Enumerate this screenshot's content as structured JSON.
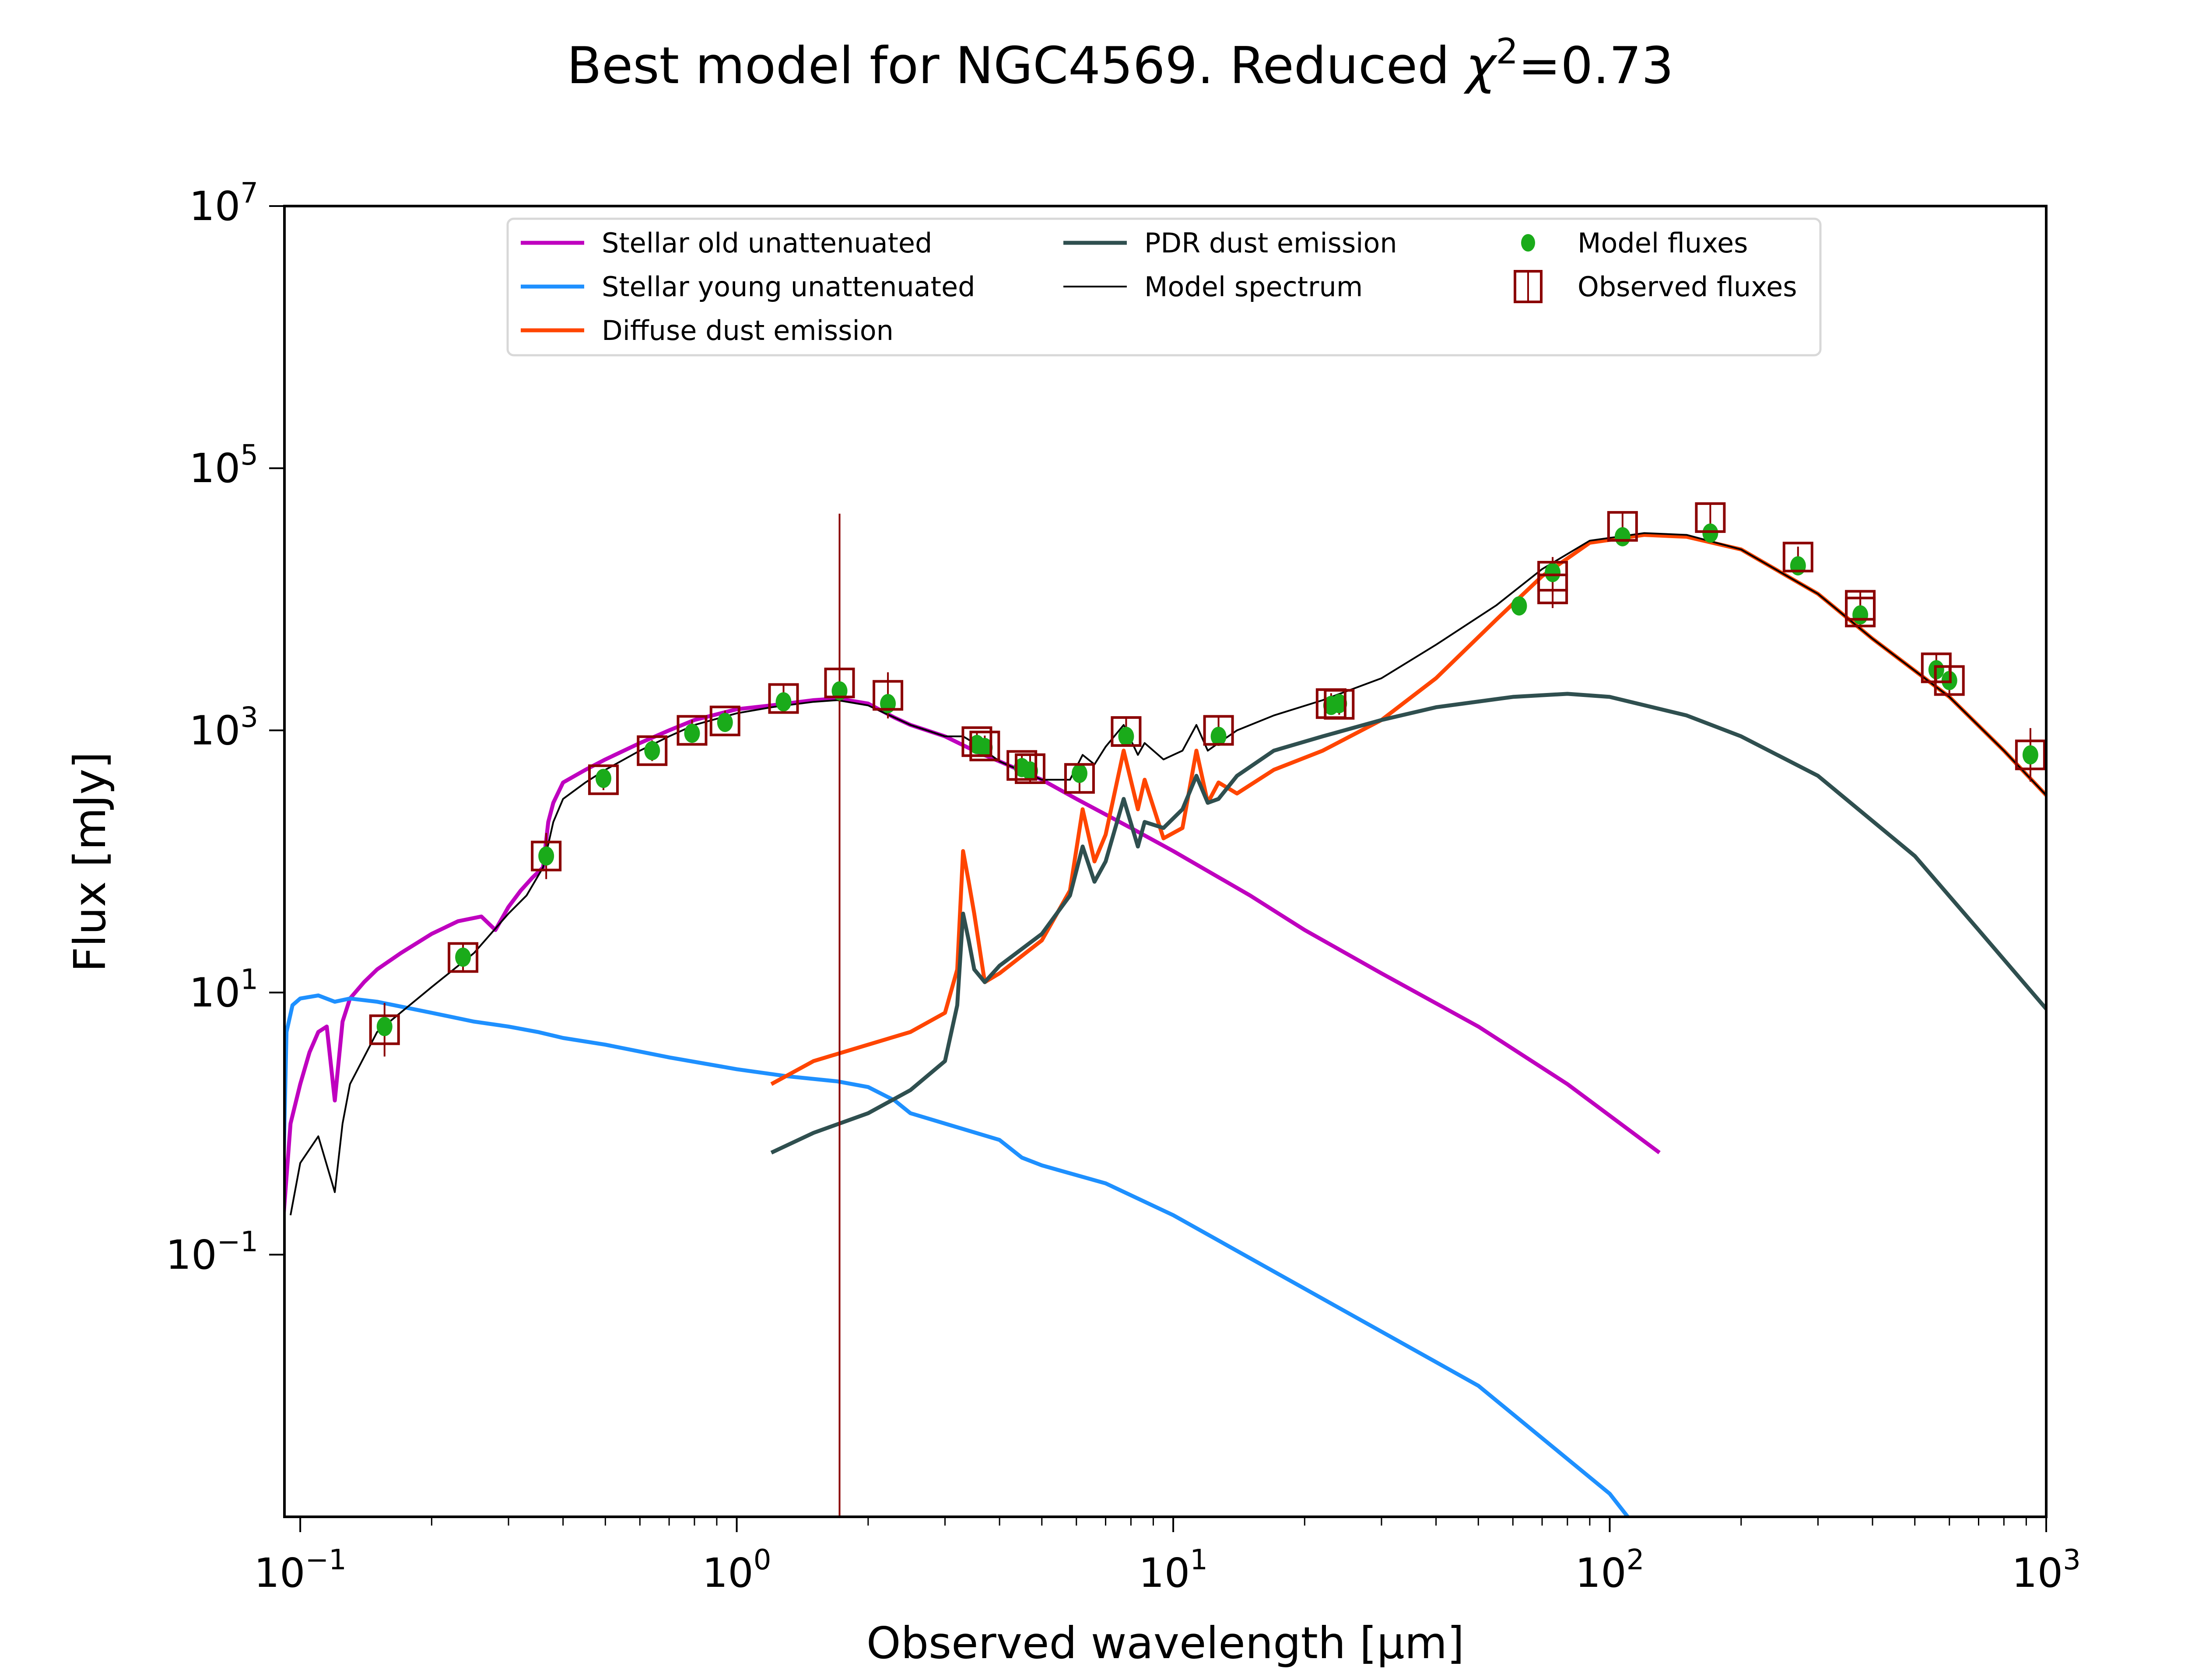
{
  "chart_data": {
    "type": "line",
    "title": "Best model for NGC4569. Reduced χ²=0.73",
    "title_parts": {
      "prefix": "Best model for NGC4569. Reduced ",
      "symbol": "χ",
      "sup": "2",
      "suffix": "=0.73"
    },
    "xlabel": "Observed wavelength [μm]",
    "ylabel": "Flux [mJy]",
    "xscale": "log",
    "yscale": "log",
    "xlim": [
      0.092,
      1000
    ],
    "ylim": [
      0.001,
      10000000
    ],
    "x_ticks": [
      {
        "base": "10",
        "exp": "−1",
        "value": 0.1
      },
      {
        "base": "10",
        "exp": "0",
        "value": 1
      },
      {
        "base": "10",
        "exp": "1",
        "value": 10
      },
      {
        "base": "10",
        "exp": "2",
        "value": 100
      },
      {
        "base": "10",
        "exp": "3",
        "value": 1000
      }
    ],
    "y_ticks": [
      {
        "base": "10",
        "exp": "7",
        "value": 10000000
      },
      {
        "base": "10",
        "exp": "5",
        "value": 100000
      },
      {
        "base": "10",
        "exp": "3",
        "value": 1000
      },
      {
        "base": "10",
        "exp": "1",
        "value": 10
      },
      {
        "base": "10",
        "exp": "−1",
        "value": 0.1
      }
    ],
    "grid": false,
    "legend_position": "upper-center",
    "legend": [
      {
        "label": "Stellar old unattenuated",
        "color": "#bf00bf",
        "kind": "line"
      },
      {
        "label": "Stellar young unattenuated",
        "color": "#1e90ff",
        "kind": "line"
      },
      {
        "label": "Diffuse dust emission",
        "color": "#ff4500",
        "kind": "line"
      },
      {
        "label": "PDR dust emission",
        "color": "#2f4f4f",
        "kind": "line"
      },
      {
        "label": "Model spectrum",
        "color": "#000000",
        "kind": "thin-line"
      },
      {
        "label": "Model fluxes",
        "color": "#1aab1a",
        "kind": "dot"
      },
      {
        "label": "Observed fluxes",
        "color": "#8b0000",
        "kind": "square"
      }
    ],
    "series": [
      {
        "name": "Stellar old unattenuated",
        "color": "#bf00bf",
        "x": [
          0.091,
          0.095,
          0.1,
          0.105,
          0.11,
          0.115,
          0.12,
          0.125,
          0.13,
          0.14,
          0.15,
          0.17,
          0.2,
          0.23,
          0.26,
          0.28,
          0.3,
          0.32,
          0.34,
          0.36,
          0.37,
          0.38,
          0.4,
          0.45,
          0.5,
          0.6,
          0.7,
          0.8,
          1.0,
          1.2,
          1.5,
          1.7,
          2.0,
          2.3,
          2.5,
          3.0,
          3.5,
          4.0,
          5.0,
          6.0,
          8.0,
          10,
          15,
          20,
          30,
          50,
          80,
          130
        ],
        "y": [
          0.15,
          1.0,
          2.0,
          3.5,
          5.0,
          5.5,
          1.5,
          6.0,
          9.0,
          12,
          15,
          20,
          28,
          35,
          38,
          30,
          45,
          60,
          75,
          90,
          200,
          280,
          400,
          500,
          600,
          800,
          1000,
          1200,
          1450,
          1550,
          1700,
          1750,
          1600,
          1250,
          1100,
          900,
          700,
          580,
          420,
          300,
          180,
          120,
          55,
          30,
          14,
          5.5,
          2.0,
          0.6
        ]
      },
      {
        "name": "Stellar young unattenuated",
        "color": "#1e90ff",
        "x": [
          0.091,
          0.093,
          0.096,
          0.1,
          0.11,
          0.12,
          0.13,
          0.15,
          0.2,
          0.25,
          0.3,
          0.35,
          0.4,
          0.5,
          0.7,
          1.0,
          1.3,
          1.7,
          2.0,
          2.3,
          2.5,
          3.0,
          4.0,
          4.5,
          5.0,
          7.0,
          10,
          20,
          50,
          100,
          110
        ],
        "y": [
          0.2,
          5.0,
          8.0,
          9.0,
          9.5,
          8.5,
          9.0,
          8.5,
          7.0,
          6.0,
          5.5,
          5.0,
          4.5,
          4.0,
          3.2,
          2.6,
          2.3,
          2.1,
          1.9,
          1.5,
          1.2,
          1.0,
          0.75,
          0.55,
          0.48,
          0.35,
          0.2,
          0.055,
          0.01,
          0.0015,
          0.001
        ]
      },
      {
        "name": "Diffuse dust emission",
        "color": "#ff4500",
        "x": [
          1.2,
          1.5,
          2.0,
          2.5,
          3.0,
          3.2,
          3.3,
          3.4,
          3.5,
          3.7,
          4.0,
          5.0,
          5.8,
          6.2,
          6.6,
          7.0,
          7.7,
          8.3,
          8.6,
          9.5,
          10.5,
          11.3,
          12.0,
          12.7,
          14,
          17,
          22,
          30,
          40,
          55,
          70,
          90,
          120,
          150,
          200,
          300,
          400,
          600,
          800,
          1000
        ],
        "y": [
          2.0,
          3.0,
          4.0,
          5.0,
          7.0,
          15,
          120,
          70,
          40,
          12,
          14,
          25,
          60,
          250,
          100,
          160,
          700,
          250,
          420,
          150,
          180,
          700,
          280,
          400,
          330,
          500,
          700,
          1200,
          2500,
          7000,
          15000,
          27000,
          31000,
          30000,
          24000,
          11000,
          5000,
          1800,
          700,
          320
        ]
      },
      {
        "name": "PDR dust emission",
        "color": "#2f4f4f",
        "x": [
          1.2,
          1.5,
          2.0,
          2.5,
          3.0,
          3.2,
          3.3,
          3.4,
          3.5,
          3.7,
          4.0,
          5.0,
          5.8,
          6.2,
          6.6,
          7.0,
          7.7,
          8.3,
          8.6,
          9.5,
          10.5,
          11.3,
          12.0,
          12.7,
          14,
          17,
          22,
          30,
          40,
          60,
          80,
          100,
          150,
          200,
          300,
          500,
          700,
          1000
        ],
        "y": [
          0.6,
          0.85,
          1.2,
          1.8,
          3.0,
          8,
          40,
          25,
          15,
          12,
          16,
          28,
          55,
          130,
          70,
          100,
          300,
          130,
          200,
          180,
          250,
          450,
          280,
          300,
          450,
          700,
          900,
          1200,
          1500,
          1800,
          1900,
          1800,
          1300,
          900,
          450,
          110,
          30,
          7.5
        ]
      },
      {
        "name": "Model spectrum",
        "color": "#000000",
        "x": [
          0.095,
          0.1,
          0.11,
          0.12,
          0.125,
          0.13,
          0.15,
          0.2,
          0.25,
          0.3,
          0.33,
          0.36,
          0.38,
          0.4,
          0.45,
          0.5,
          0.6,
          0.7,
          0.8,
          1.0,
          1.2,
          1.5,
          1.7,
          2.0,
          2.5,
          3.0,
          3.3,
          3.5,
          4.0,
          5.0,
          5.8,
          6.2,
          6.6,
          7.0,
          7.7,
          8.3,
          8.6,
          9.5,
          10.5,
          11.3,
          12.0,
          12.7,
          14,
          17,
          22,
          30,
          40,
          55,
          70,
          90,
          120,
          150,
          200,
          300,
          400,
          600,
          800,
          1000
        ],
        "y": [
          0.2,
          0.5,
          0.8,
          0.3,
          1.0,
          2.0,
          5.0,
          11,
          20,
          40,
          55,
          90,
          200,
          300,
          400,
          500,
          700,
          900,
          1100,
          1350,
          1500,
          1650,
          1700,
          1550,
          1100,
          900,
          900,
          800,
          580,
          420,
          420,
          650,
          550,
          750,
          1100,
          650,
          800,
          600,
          700,
          1100,
          700,
          800,
          1000,
          1300,
          1700,
          2500,
          4500,
          9000,
          17000,
          28000,
          32000,
          31000,
          24000,
          11000,
          5000,
          1800,
          700,
          320
        ]
      }
    ],
    "model_fluxes": {
      "x": [
        0.156,
        0.236,
        0.366,
        0.495,
        0.64,
        0.79,
        0.94,
        1.28,
        1.72,
        2.22,
        3.55,
        3.7,
        4.5,
        4.7,
        6.1,
        7.8,
        12.7,
        23,
        24,
        62,
        74,
        107,
        170,
        270,
        375,
        560,
        600,
        920
      ],
      "y": [
        5.5,
        18.6,
        110,
        430,
        700,
        950,
        1150,
        1650,
        2000,
        1600,
        780,
        740,
        520,
        490,
        470,
        900,
        900,
        1550,
        1600,
        8900,
        16000,
        30000,
        32000,
        18000,
        7600,
        2900,
        2400,
        650
      ]
    },
    "observed_fluxes": {
      "x": [
        0.156,
        0.236,
        0.366,
        0.495,
        0.64,
        0.79,
        0.94,
        1.28,
        1.72,
        2.22,
        3.55,
        3.7,
        4.5,
        4.7,
        6.1,
        7.8,
        12.7,
        23,
        24,
        74,
        74,
        107,
        170,
        270,
        375,
        375,
        560,
        600,
        920
      ],
      "y": [
        5.2,
        18.5,
        110,
        420,
        700,
        1000,
        1180,
        1750,
        2300,
        1850,
        820,
        760,
        540,
        510,
        430,
        980,
        1000,
        1600,
        1580,
        15000,
        12000,
        36000,
        42000,
        21000,
        9000,
        8000,
        3000,
        2400,
        650
      ],
      "yerr_factor": [
        1.6,
        1.3,
        1.5,
        1.2,
        1.2,
        1.2,
        1.2,
        1.3,
        1.5,
        1.5,
        1.2,
        1.2,
        1.2,
        1.3,
        1.3,
        1.3,
        1.3,
        1.2,
        1.2,
        1.4,
        1.4,
        1.3,
        1.3,
        1.2,
        1.3,
        1.3,
        1.3,
        1.3,
        1.6
      ],
      "big_error": {
        "x": 1.72,
        "y_low": 0.001,
        "y_high": 45000
      }
    }
  }
}
